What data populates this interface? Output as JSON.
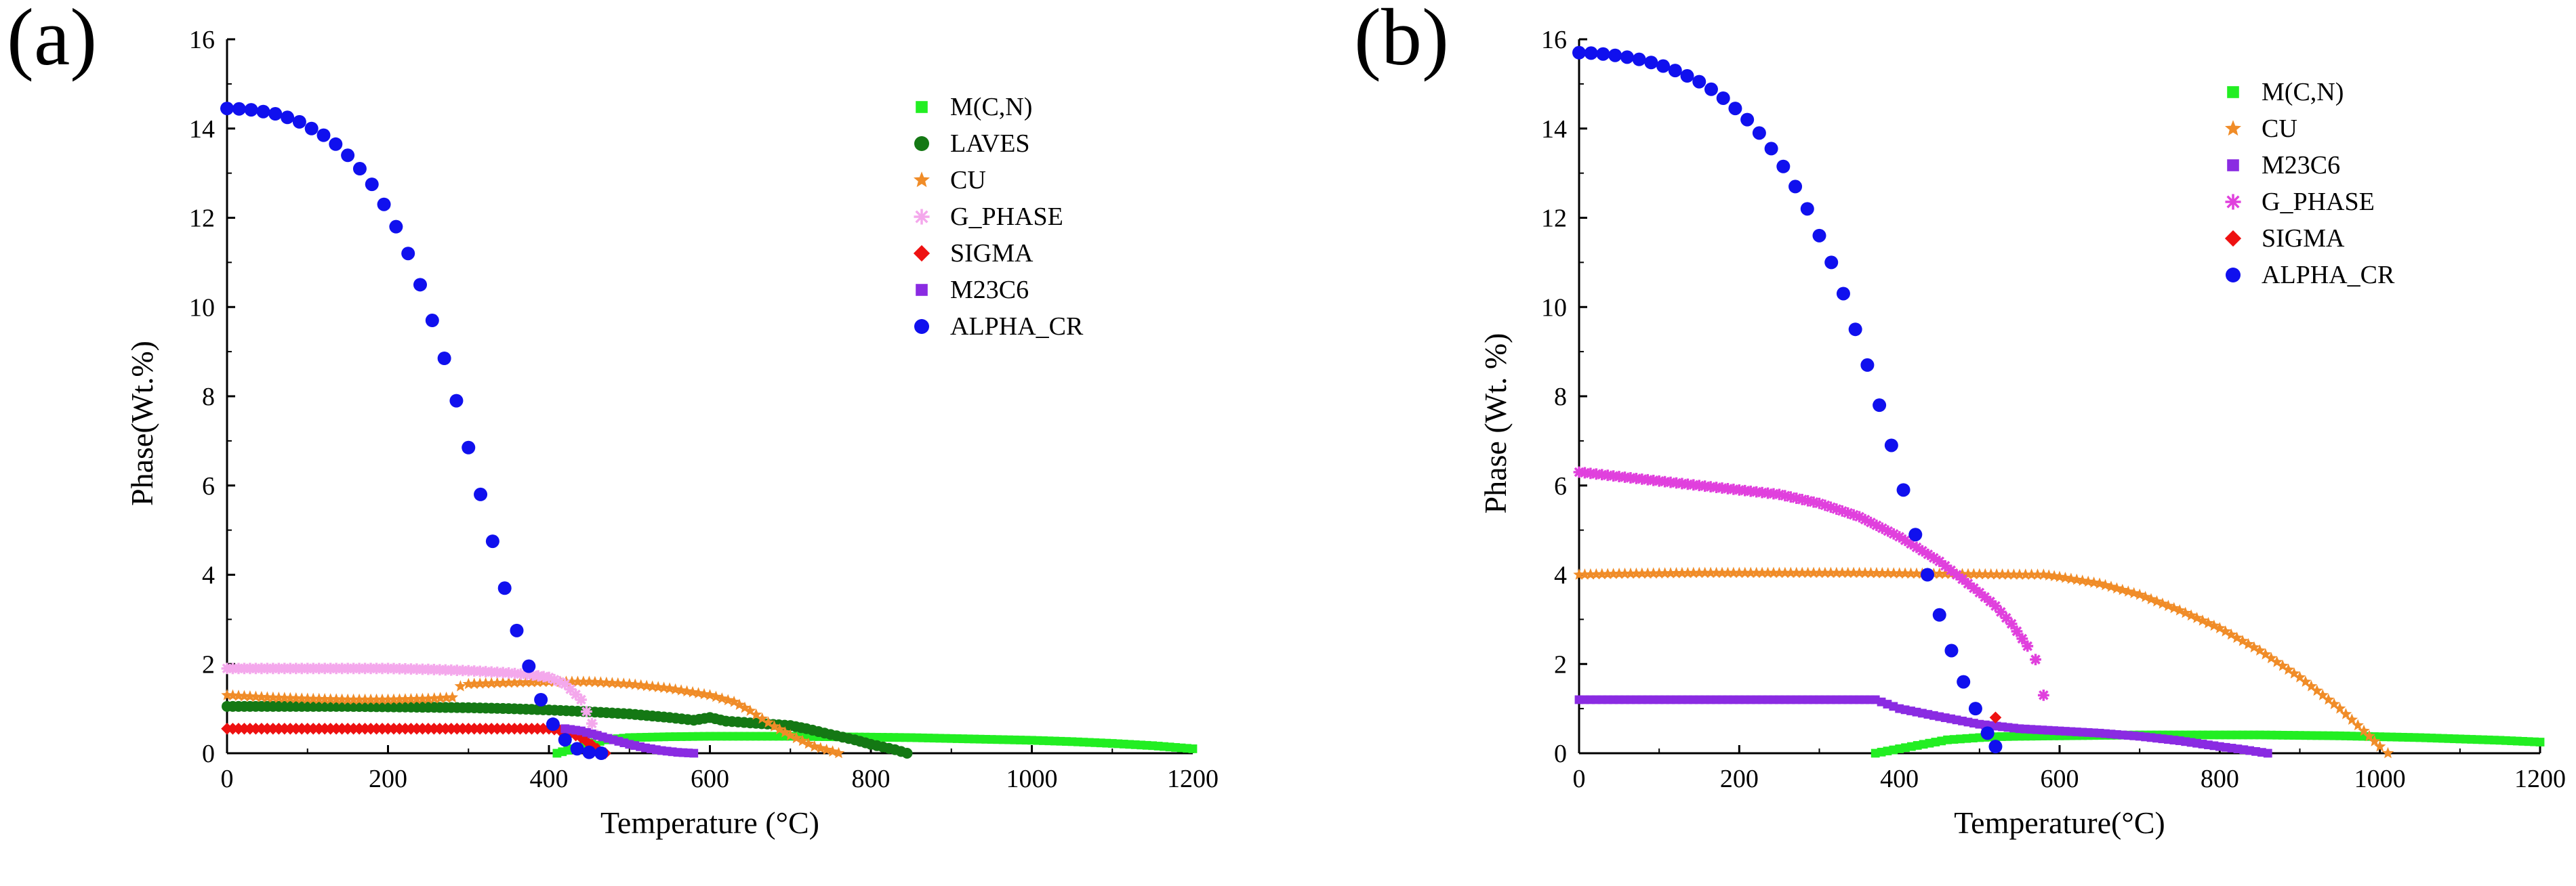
{
  "chart_data": [
    {
      "panel_label": "(a)",
      "type": "scatter",
      "xlabel": "Temperature (°C)",
      "ylabel": "Phase(Wt.%)",
      "xlim": [
        0,
        1200
      ],
      "ylim": [
        0,
        16
      ],
      "xticks": [
        "0",
        "200",
        "400",
        "600",
        "800",
        "1000",
        "1200"
      ],
      "yticks": [
        "0",
        "2",
        "4",
        "6",
        "8",
        "10",
        "12",
        "14",
        "16"
      ],
      "legend_position": "top-right",
      "series": [
        {
          "name": "M(C,N)",
          "color": "#22ee22",
          "marker": "square",
          "x": [
            410,
            430,
            450,
            470,
            500,
            550,
            600,
            650,
            700,
            750,
            800,
            850,
            900,
            950,
            1000,
            1050,
            1100,
            1150,
            1200
          ],
          "y": [
            0.0,
            0.1,
            0.2,
            0.3,
            0.35,
            0.37,
            0.38,
            0.38,
            0.38,
            0.37,
            0.36,
            0.35,
            0.33,
            0.31,
            0.29,
            0.26,
            0.22,
            0.17,
            0.1
          ]
        },
        {
          "name": "LAVES",
          "color": "#147814",
          "marker": "circle",
          "x": [
            0,
            50,
            100,
            150,
            200,
            250,
            300,
            350,
            400,
            450,
            500,
            550,
            580,
            600,
            620,
            650,
            700,
            720,
            750,
            780,
            800,
            830,
            845
          ],
          "y": [
            1.05,
            1.05,
            1.05,
            1.05,
            1.04,
            1.03,
            1.02,
            1.0,
            0.97,
            0.93,
            0.88,
            0.8,
            0.74,
            0.8,
            0.72,
            0.68,
            0.62,
            0.55,
            0.42,
            0.3,
            0.2,
            0.08,
            0.0
          ]
        },
        {
          "name": "CU",
          "color": "#f08c28",
          "marker": "star",
          "x": [
            0,
            50,
            100,
            150,
            200,
            250,
            280,
            290,
            300,
            350,
            400,
            450,
            500,
            550,
            600,
            630,
            650,
            680,
            700,
            730,
            760
          ],
          "y": [
            1.3,
            1.25,
            1.22,
            1.2,
            1.2,
            1.22,
            1.25,
            1.5,
            1.55,
            1.58,
            1.6,
            1.6,
            1.55,
            1.45,
            1.3,
            1.15,
            0.95,
            0.6,
            0.4,
            0.15,
            0.0
          ]
        },
        {
          "name": "G_PHASE",
          "color": "#f4a8ec",
          "marker": "asterisk",
          "x": [
            0,
            50,
            100,
            150,
            200,
            250,
            300,
            350,
            380,
            400,
            420,
            440,
            460
          ],
          "y": [
            1.9,
            1.9,
            1.9,
            1.9,
            1.9,
            1.88,
            1.85,
            1.8,
            1.75,
            1.7,
            1.55,
            1.2,
            0.4
          ]
        },
        {
          "name": "SIGMA",
          "color": "#ee1111",
          "marker": "diamond",
          "x": [
            0,
            50,
            100,
            150,
            200,
            250,
            300,
            350,
            400,
            420,
            440,
            460,
            470
          ],
          "y": [
            0.55,
            0.55,
            0.55,
            0.55,
            0.55,
            0.55,
            0.55,
            0.55,
            0.55,
            0.5,
            0.35,
            0.1,
            0.0
          ]
        },
        {
          "name": "M23C6",
          "color": "#8a2be2",
          "marker": "square",
          "x": [
            420,
            440,
            460,
            480,
            500,
            520,
            540,
            560,
            580
          ],
          "y": [
            0.55,
            0.5,
            0.4,
            0.3,
            0.2,
            0.12,
            0.06,
            0.02,
            0.0
          ]
        },
        {
          "name": "ALPHA_CR",
          "color": "#1010ee",
          "marker": "circle",
          "x": [
            0,
            15,
            30,
            45,
            60,
            75,
            90,
            105,
            120,
            135,
            150,
            165,
            180,
            195,
            210,
            225,
            240,
            255,
            270,
            285,
            300,
            315,
            330,
            345,
            360,
            375,
            390,
            405,
            420,
            435,
            450,
            465
          ],
          "y": [
            14.45,
            14.44,
            14.42,
            14.38,
            14.33,
            14.25,
            14.15,
            14.0,
            13.85,
            13.65,
            13.4,
            13.1,
            12.75,
            12.3,
            11.8,
            11.2,
            10.5,
            9.7,
            8.85,
            7.9,
            6.85,
            5.8,
            4.75,
            3.7,
            2.75,
            1.95,
            1.2,
            0.65,
            0.3,
            0.1,
            0.02,
            0.0
          ]
        }
      ]
    },
    {
      "panel_label": "(b)",
      "type": "scatter",
      "xlabel": "Temperature(°C)",
      "ylabel": "Phase (Wt. %)",
      "xlim": [
        0,
        1200
      ],
      "ylim": [
        0,
        16
      ],
      "xticks": [
        "0",
        "200",
        "400",
        "600",
        "800",
        "1000",
        "1200"
      ],
      "yticks": [
        "0",
        "2",
        "4",
        "6",
        "8",
        "10",
        "12",
        "14",
        "16"
      ],
      "legend_position": "top-right",
      "series": [
        {
          "name": "M(C,N)",
          "color": "#22ee22",
          "marker": "square",
          "x": [
            370,
            400,
            430,
            460,
            500,
            520,
            550,
            600,
            650,
            700,
            750,
            800,
            850,
            900,
            950,
            1000,
            1050,
            1100,
            1150,
            1200
          ],
          "y": [
            0.0,
            0.1,
            0.2,
            0.3,
            0.35,
            0.37,
            0.38,
            0.39,
            0.4,
            0.41,
            0.41,
            0.41,
            0.41,
            0.4,
            0.39,
            0.37,
            0.35,
            0.32,
            0.29,
            0.25
          ]
        },
        {
          "name": "CU",
          "color": "#f08c28",
          "marker": "star",
          "x": [
            0,
            50,
            100,
            150,
            200,
            250,
            300,
            350,
            400,
            450,
            500,
            550,
            580,
            600,
            650,
            700,
            750,
            800,
            850,
            900,
            950,
            980,
            1000,
            1010
          ],
          "y": [
            4.0,
            4.02,
            4.03,
            4.04,
            4.04,
            4.04,
            4.04,
            4.04,
            4.03,
            4.02,
            4.01,
            4.0,
            4.0,
            3.95,
            3.8,
            3.55,
            3.2,
            2.8,
            2.3,
            1.7,
            1.0,
            0.5,
            0.15,
            0.0
          ]
        },
        {
          "name": "M23C6",
          "color": "#8a2be2",
          "marker": "square",
          "x": [
            0,
            50,
            100,
            150,
            200,
            250,
            300,
            350,
            370,
            400,
            450,
            500,
            550,
            600,
            650,
            700,
            750,
            800,
            830,
            860
          ],
          "y": [
            1.2,
            1.2,
            1.2,
            1.2,
            1.2,
            1.2,
            1.2,
            1.2,
            1.2,
            1.0,
            0.82,
            0.65,
            0.55,
            0.5,
            0.45,
            0.38,
            0.28,
            0.15,
            0.08,
            0.0
          ]
        },
        {
          "name": "G_PHASE",
          "color": "#e040dd",
          "marker": "asterisk",
          "x": [
            0,
            50,
            100,
            150,
            200,
            250,
            300,
            350,
            400,
            450,
            500,
            520,
            540,
            560,
            570,
            580
          ],
          "y": [
            6.3,
            6.2,
            6.1,
            6.0,
            5.9,
            5.8,
            5.6,
            5.3,
            4.85,
            4.3,
            3.6,
            3.3,
            2.9,
            2.4,
            2.1,
            1.3
          ]
        },
        {
          "name": "SIGMA",
          "color": "#ee1111",
          "marker": "diamond",
          "x": [
            520
          ],
          "y": [
            0.8
          ]
        },
        {
          "name": "ALPHA_CR",
          "color": "#1010ee",
          "marker": "circle",
          "x": [
            0,
            15,
            30,
            45,
            60,
            75,
            90,
            105,
            120,
            135,
            150,
            165,
            180,
            195,
            210,
            225,
            240,
            255,
            270,
            285,
            300,
            315,
            330,
            345,
            360,
            375,
            390,
            405,
            420,
            435,
            450,
            465,
            480,
            495,
            510,
            520
          ],
          "y": [
            15.7,
            15.69,
            15.67,
            15.64,
            15.6,
            15.55,
            15.48,
            15.4,
            15.3,
            15.18,
            15.05,
            14.88,
            14.68,
            14.45,
            14.2,
            13.9,
            13.55,
            13.15,
            12.7,
            12.2,
            11.6,
            11.0,
            10.3,
            9.5,
            8.7,
            7.8,
            6.9,
            5.9,
            4.9,
            4.0,
            3.1,
            2.3,
            1.6,
            1.0,
            0.45,
            0.15
          ]
        }
      ]
    }
  ]
}
